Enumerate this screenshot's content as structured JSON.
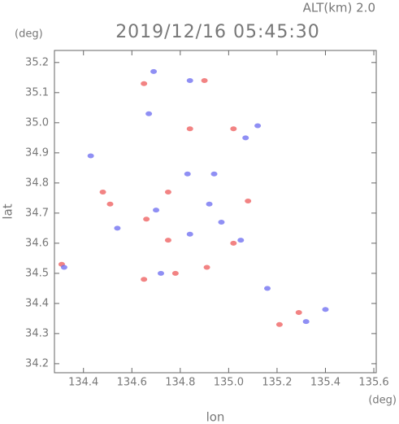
{
  "chart_data": {
    "type": "scatter",
    "annotation": "ALT(km) 2.0",
    "title": "2019/12/16 05:45:30",
    "y_unit": "(deg)",
    "x_unit": "(deg)",
    "x_label": "lon",
    "y_label": "lat",
    "xlim": [
      134.28,
      135.61
    ],
    "ylim": [
      34.17,
      35.24
    ],
    "xticks": [
      134.4,
      134.6,
      134.8,
      {
        "value": 135,
        "label": "135.0"
      },
      135.2,
      135.4,
      135.6
    ],
    "yticks": [
      34.2,
      34.3,
      34.4,
      34.5,
      34.6,
      34.7,
      34.8,
      34.9,
      {
        "value": 35,
        "label": "35.0"
      },
      35.1,
      35.2
    ],
    "series": [
      {
        "color": "#ee5a5a",
        "x": [
          134.65,
          134.48,
          134.75,
          134.66,
          135.02,
          134.91,
          134.78,
          134.31,
          135.29,
          135.21,
          134.84,
          135.02,
          134.9,
          134.75,
          134.65,
          135.08,
          134.51
        ],
        "values": [
          35.13,
          34.77,
          34.77,
          34.68,
          34.6,
          34.52,
          34.5,
          34.53,
          34.37,
          34.33,
          34.98,
          34.98,
          35.14,
          34.61,
          34.48,
          34.74,
          34.73
        ]
      },
      {
        "color": "#6a6af0",
        "x": [
          134.69,
          134.43,
          134.54,
          134.7,
          134.92,
          135.05,
          134.84,
          135.12,
          135.07,
          134.72,
          135.16,
          135.32,
          135.4,
          134.83,
          134.97,
          134.32,
          134.67,
          134.94,
          134.84
        ],
        "values": [
          35.17,
          34.89,
          34.65,
          34.71,
          34.73,
          34.61,
          34.63,
          34.99,
          34.95,
          34.5,
          34.45,
          34.34,
          34.38,
          34.83,
          34.67,
          34.52,
          35.03,
          34.83,
          35.14
        ]
      }
    ]
  }
}
